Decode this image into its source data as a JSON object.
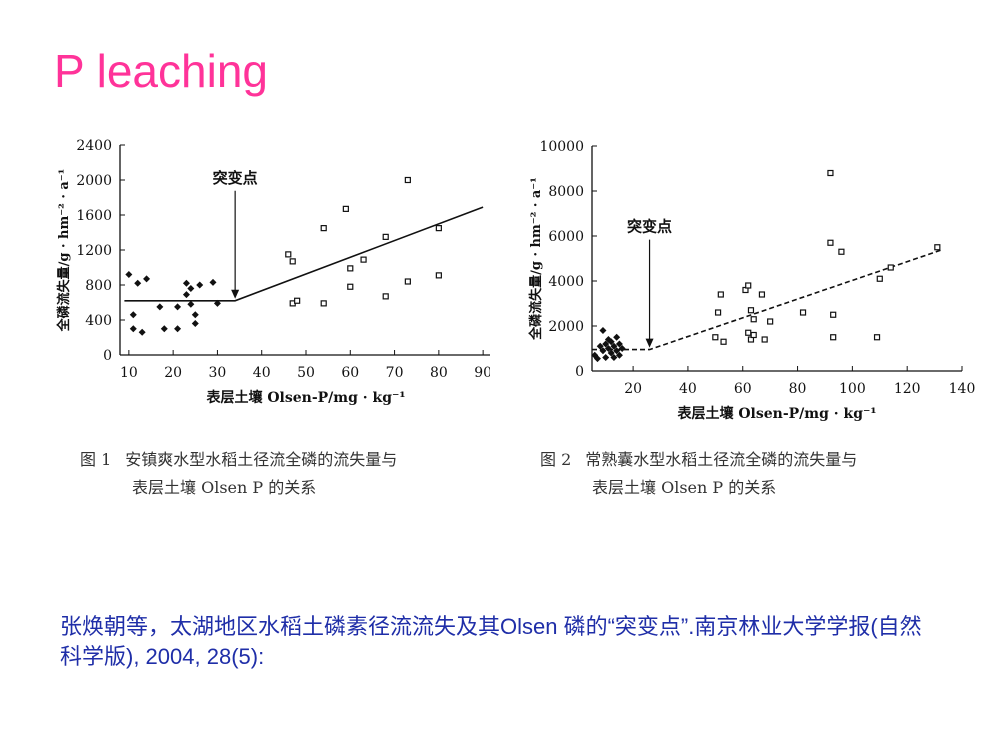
{
  "slide": {
    "title": "P leaching",
    "reference": "张焕朝等，太湖地区水稻土磷素径流流失及其Olsen 磷的“突变点”.南京林业大学学报(自然科学版), 2004, 28(5):"
  },
  "captions": [
    {
      "label": "图 1",
      "line1": "安镇爽水型水稻土径流全磷的流失量与",
      "line2": "表层土壤 Olsen P 的关系"
    },
    {
      "label": "图 2",
      "line1": "常熟囊水型水稻土径流全磷的流失量与",
      "line2": "表层土壤 Olsen P 的关系"
    }
  ],
  "chart_data": [
    {
      "type": "scatter",
      "xlabel": "表层土壤 Olsen-P/mg · kg⁻¹",
      "ylabel": "全磷流失量/g · hm⁻² · a⁻¹",
      "xlim": [
        8,
        92
      ],
      "ylim": [
        0,
        2400
      ],
      "xticks": [
        "10",
        "20",
        "30",
        "40",
        "50",
        "60",
        "70",
        "80",
        "90"
      ],
      "xtick_values": [
        10,
        20,
        30,
        40,
        50,
        60,
        70,
        80,
        90
      ],
      "yticks": [
        "0",
        "400",
        "800",
        "1200",
        "1600",
        "2000",
        "2400"
      ],
      "ytick_values": [
        0,
        400,
        800,
        1200,
        1600,
        2000,
        2400
      ],
      "annotation": "突变点",
      "annotation_x": 34,
      "change_point": [
        34,
        620
      ],
      "fit_line": [
        [
          9,
          620
        ],
        [
          34,
          620
        ],
        [
          90,
          1690
        ]
      ],
      "fit_style": "solid",
      "series": [
        {
          "marker": "diamond",
          "points": [
            [
              10,
              920
            ],
            [
              11,
              460
            ],
            [
              12,
              820
            ],
            [
              11,
              300
            ],
            [
              14,
              870
            ],
            [
              13,
              260
            ],
            [
              17,
              550
            ],
            [
              18,
              300
            ],
            [
              21,
              550
            ],
            [
              21,
              300
            ],
            [
              23,
              820
            ],
            [
              23,
              690
            ],
            [
              24,
              580
            ],
            [
              24,
              760
            ],
            [
              25,
              460
            ],
            [
              25,
              360
            ],
            [
              26,
              800
            ],
            [
              29,
              830
            ],
            [
              30,
              590
            ]
          ]
        },
        {
          "marker": "square",
          "points": [
            [
              46,
              1150
            ],
            [
              47,
              1070
            ],
            [
              47,
              590
            ],
            [
              48,
              620
            ],
            [
              54,
              1450
            ],
            [
              54,
              590
            ],
            [
              59,
              1670
            ],
            [
              60,
              990
            ],
            [
              60,
              780
            ],
            [
              63,
              1090
            ],
            [
              68,
              1350
            ],
            [
              68,
              670
            ],
            [
              73,
              2000
            ],
            [
              73,
              840
            ],
            [
              80,
              1450
            ],
            [
              80,
              910
            ]
          ]
        }
      ]
    },
    {
      "type": "scatter",
      "xlabel": "表层土壤 Olsen-P/mg · kg⁻¹",
      "ylabel": "全磷流失量/g · hm⁻² · a⁻¹",
      "xlim": [
        5,
        140
      ],
      "ylim": [
        0,
        10000
      ],
      "xticks": [
        "20",
        "40",
        "60",
        "80",
        "100",
        "120",
        "140"
      ],
      "xtick_values": [
        20,
        40,
        60,
        80,
        100,
        120,
        140
      ],
      "yticks": [
        "0",
        "2000",
        "4000",
        "6000",
        "8000",
        "10000"
      ],
      "ytick_values": [
        0,
        2000,
        4000,
        6000,
        8000,
        10000
      ],
      "annotation": "突变点",
      "annotation_x": 26,
      "change_point": [
        26,
        950
      ],
      "fit_line": [
        [
          5,
          950
        ],
        [
          26,
          950
        ],
        [
          133,
          5400
        ]
      ],
      "fit_style": "dashed",
      "series": [
        {
          "marker": "diamond",
          "points": [
            [
              6,
              700
            ],
            [
              7,
              550
            ],
            [
              8,
              1100
            ],
            [
              9,
              900
            ],
            [
              9,
              1800
            ],
            [
              10,
              1200
            ],
            [
              10,
              600
            ],
            [
              11,
              1000
            ],
            [
              11,
              1400
            ],
            [
              12,
              800
            ],
            [
              12,
              1300
            ],
            [
              13,
              1100
            ],
            [
              13,
              600
            ],
            [
              14,
              1500
            ],
            [
              14,
              900
            ],
            [
              15,
              1200
            ],
            [
              15,
              700
            ],
            [
              16,
              1000
            ]
          ]
        },
        {
          "marker": "square",
          "points": [
            [
              50,
              1500
            ],
            [
              51,
              2600
            ],
            [
              52,
              3400
            ],
            [
              53,
              1300
            ],
            [
              61,
              3600
            ],
            [
              62,
              3800
            ],
            [
              62,
              1700
            ],
            [
              63,
              2700
            ],
            [
              63,
              1400
            ],
            [
              64,
              2300
            ],
            [
              64,
              1600
            ],
            [
              67,
              3400
            ],
            [
              68,
              1400
            ],
            [
              70,
              2200
            ],
            [
              82,
              2600
            ],
            [
              92,
              8800
            ],
            [
              92,
              5700
            ],
            [
              93,
              2500
            ],
            [
              93,
              1500
            ],
            [
              96,
              5300
            ],
            [
              109,
              1500
            ],
            [
              110,
              4100
            ],
            [
              114,
              4600
            ],
            [
              131,
              5500
            ]
          ]
        }
      ]
    }
  ]
}
